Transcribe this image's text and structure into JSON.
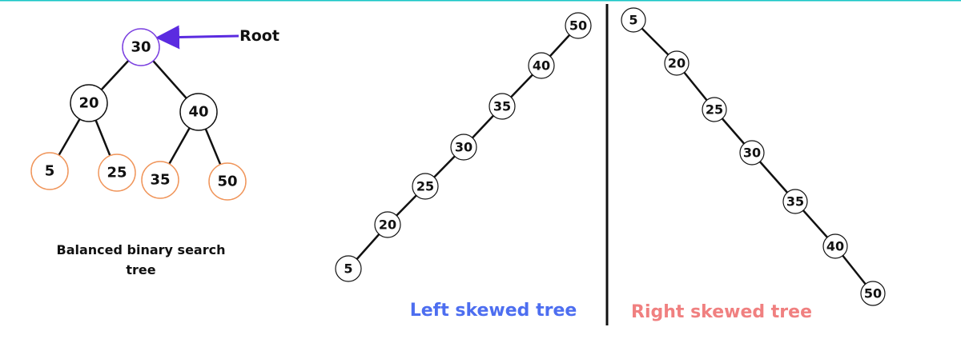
{
  "balanced": {
    "caption": "Balanced binary search tree",
    "root_label": "Root",
    "nodes": [
      30,
      20,
      40,
      5,
      25,
      35,
      50
    ]
  },
  "left_skewed": {
    "caption": "Left skewed tree",
    "nodes": [
      50,
      40,
      35,
      30,
      25,
      20,
      5
    ]
  },
  "right_skewed": {
    "caption": "Right skewed tree",
    "nodes": [
      5,
      20,
      25,
      30,
      35,
      40,
      50
    ]
  }
}
